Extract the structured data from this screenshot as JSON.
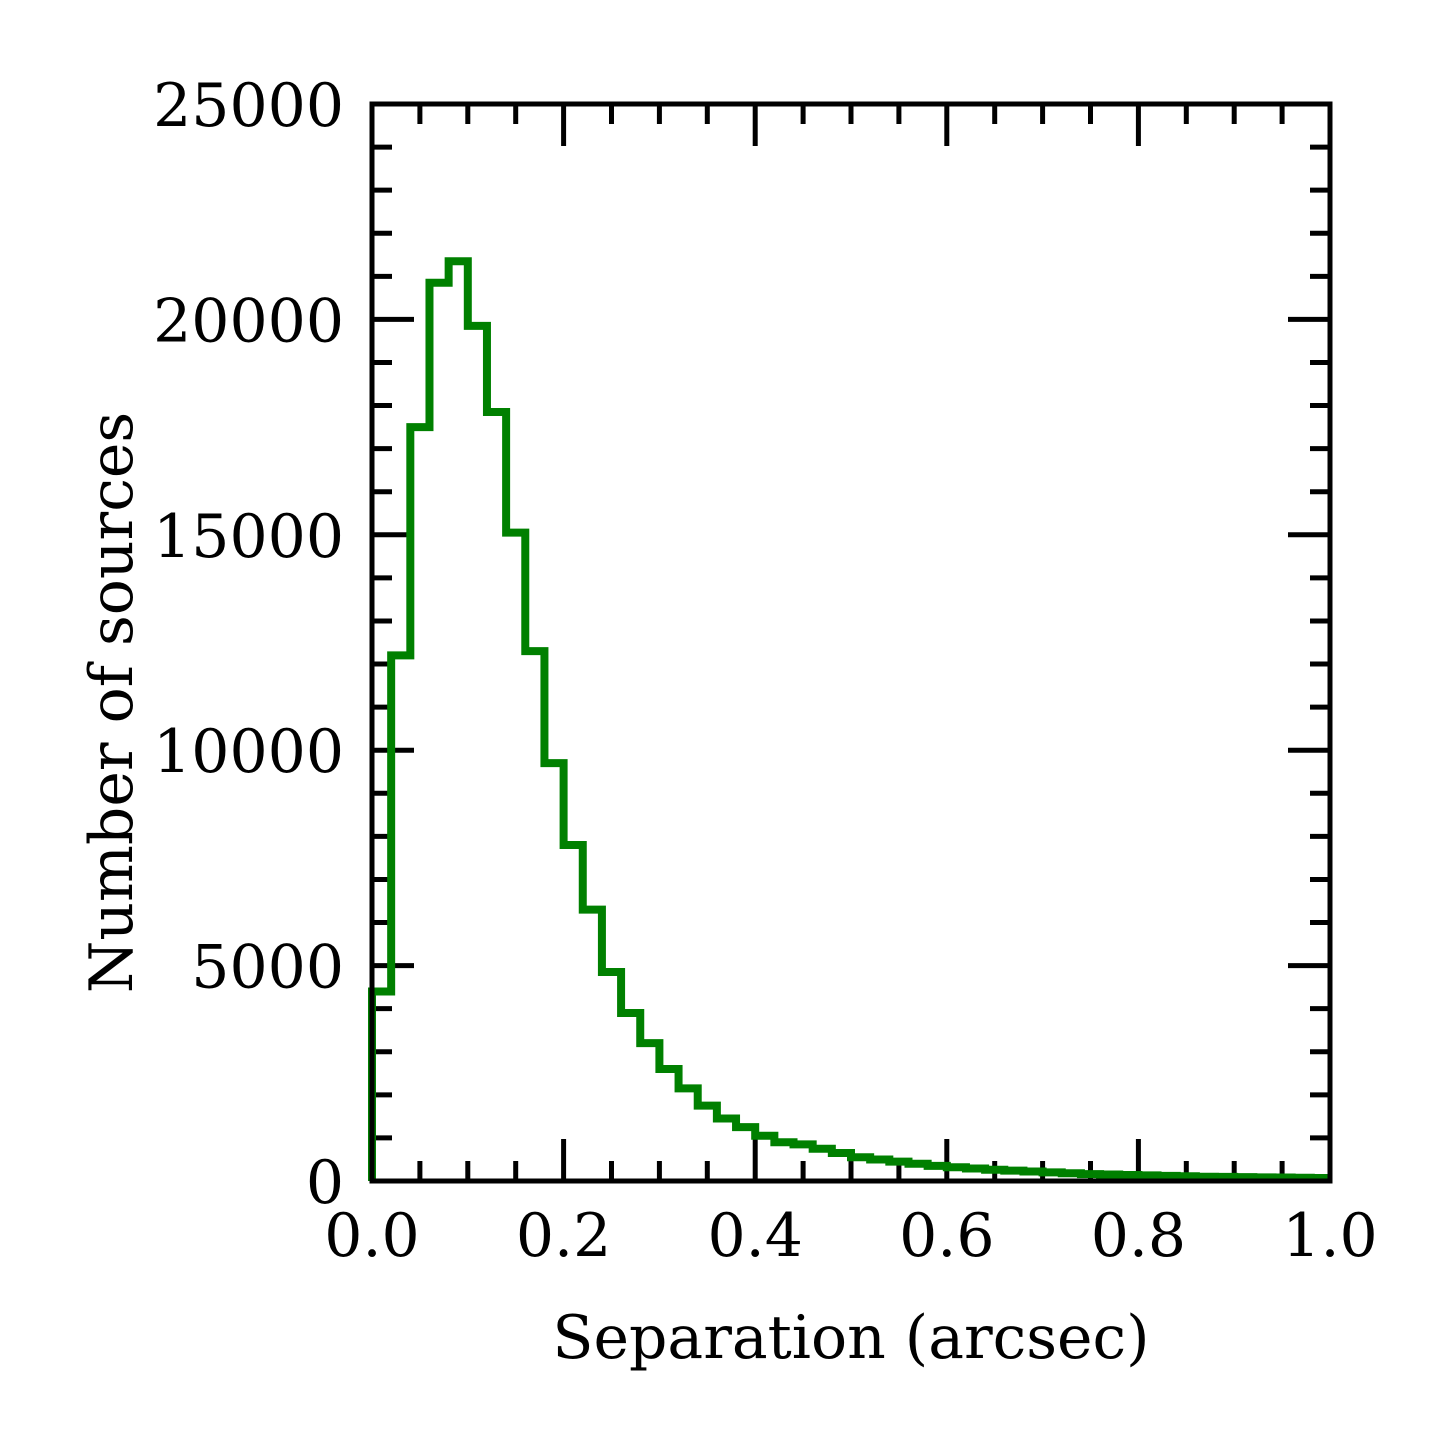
{
  "chart_data": {
    "type": "histogram",
    "title": "",
    "xlabel": "Separation (arcsec)",
    "ylabel": "Number of sources",
    "xlim": [
      0.0,
      1.0
    ],
    "ylim": [
      0,
      25000
    ],
    "xticks": [
      "0.0",
      "0.2",
      "0.4",
      "0.6",
      "0.8",
      "1.0"
    ],
    "yticks": [
      "0",
      "5000",
      "10000",
      "15000",
      "20000",
      "25000"
    ],
    "grid": false,
    "legend": "none",
    "line_color": "#008000",
    "bin_width": 0.02,
    "bin_edges_start": 0.0,
    "series": [
      {
        "values": [
          4400,
          12200,
          17500,
          20850,
          21350,
          19850,
          17850,
          15050,
          12300,
          9700,
          7800,
          6300,
          4850,
          3900,
          3200,
          2600,
          2150,
          1750,
          1450,
          1250,
          1050,
          900,
          850,
          750,
          650,
          550,
          500,
          450,
          400,
          350,
          320,
          290,
          260,
          240,
          220,
          200,
          180,
          160,
          150,
          140,
          130,
          120,
          110,
          100,
          95,
          90,
          85,
          80,
          75,
          70
        ]
      }
    ]
  }
}
